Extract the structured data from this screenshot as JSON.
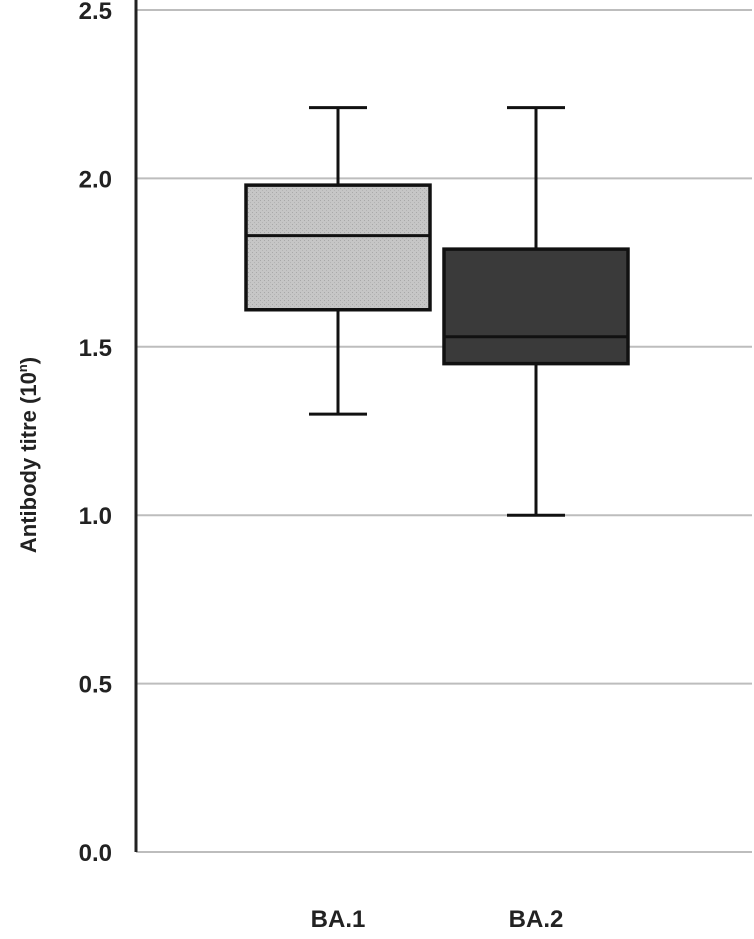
{
  "chart_data": {
    "type": "box",
    "title": "",
    "xlabel": "",
    "ylabel": "Antibody titre (10",
    "ylabel_superscript": "n",
    "ylabel_suffix": ")",
    "ylim": [
      0,
      2.5
    ],
    "yticks": [
      "0.0",
      "0.5",
      "1.0",
      "1.5",
      "2.0",
      "2.5"
    ],
    "grid": true,
    "categories": [
      "BA.1",
      "BA.2"
    ],
    "boxes": [
      {
        "name": "BA.1",
        "min": 1.3,
        "q1": 1.61,
        "median": 1.83,
        "q3": 1.98,
        "max": 2.21,
        "color": "#c4c4c4"
      },
      {
        "name": "BA.2",
        "min": 1.0,
        "q1": 1.45,
        "median": 1.53,
        "q3": 1.79,
        "max": 2.21,
        "color": "#3a3a3a"
      }
    ],
    "colors": {
      "grid": "#bdbdbd",
      "axis": "#222222",
      "stroke": "#111111"
    }
  }
}
